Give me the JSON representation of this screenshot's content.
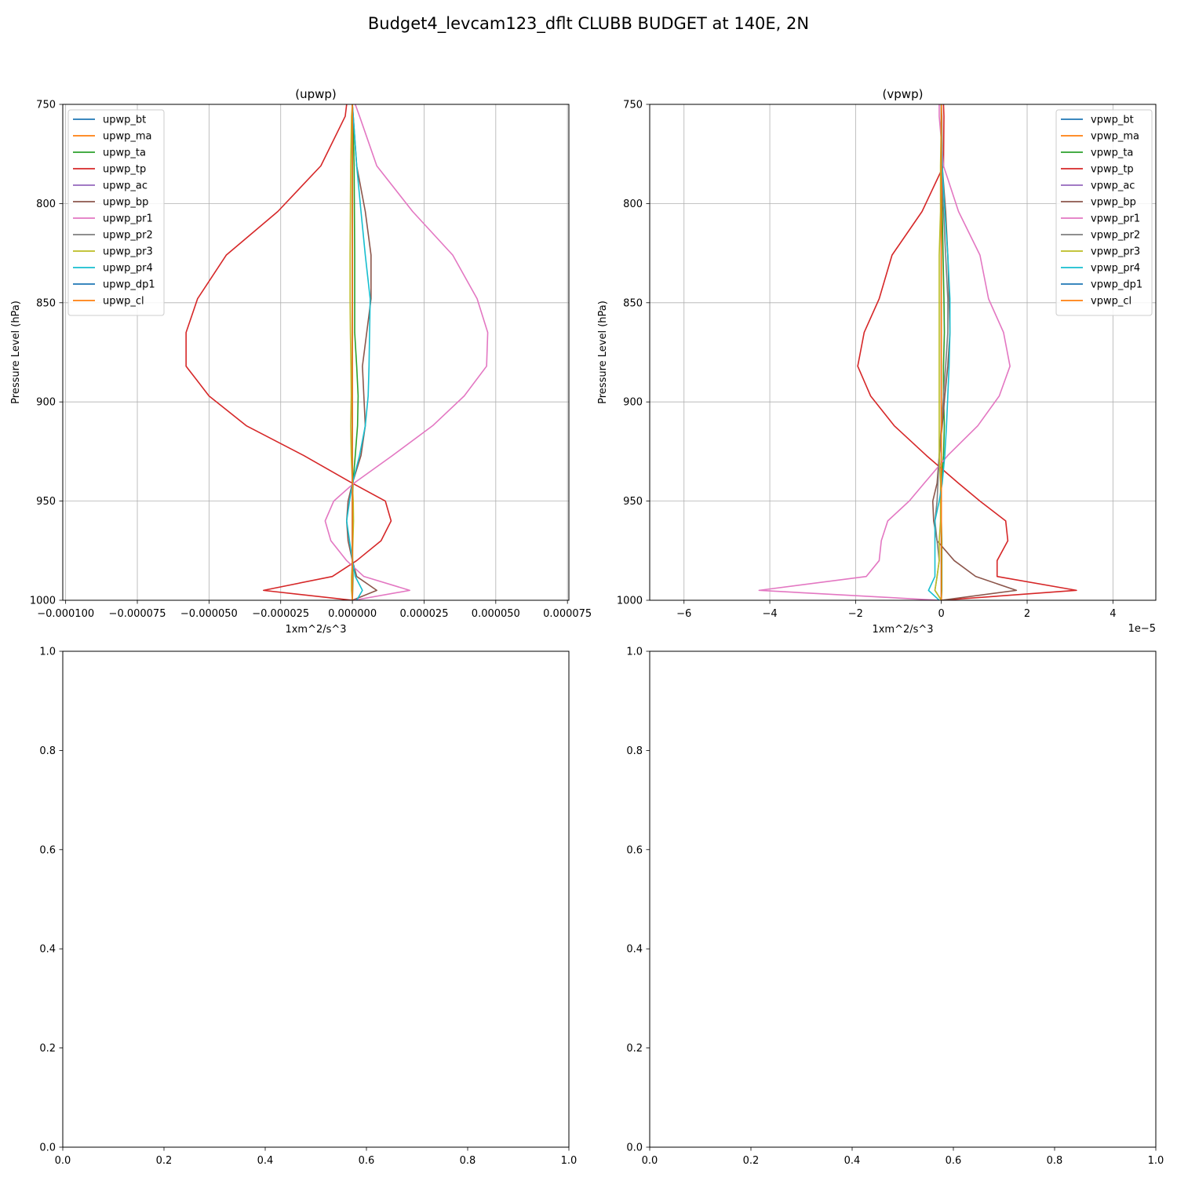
{
  "suptitle": "Budget4_levcam123_dflt CLUBB BUDGET at 140E, 2N",
  "chart_data": [
    {
      "type": "line",
      "title": "(upwp)",
      "xlabel": "1xm^2/s^3",
      "ylabel": "Pressure Level (hPa)",
      "xlim": [
        -0.000101,
        7.55e-05
      ],
      "ylim": [
        1000,
        750
      ],
      "xticks": [
        -0.0001,
        -7.5e-05,
        -5e-05,
        -2.5e-05,
        0,
        2.5e-05,
        5e-05,
        7.5e-05
      ],
      "xtick_labels": [
        "−0.000100",
        "−0.000075",
        "−0.000050",
        "−0.000025",
        "0.000000",
        "0.000025",
        "0.000050",
        "0.000075"
      ],
      "yticks": [
        750,
        800,
        850,
        900,
        950,
        1000
      ],
      "ytick_labels": [
        "750",
        "800",
        "850",
        "900",
        "950",
        "1000"
      ],
      "grid": true,
      "legend_position": "upper left",
      "levels": [
        750,
        756,
        781,
        804,
        826,
        848,
        865,
        882,
        897,
        912,
        927,
        941,
        950,
        960,
        970,
        980,
        988,
        995,
        1000
      ],
      "series": [
        {
          "name": "upwp_bt",
          "color": "#1f77b4",
          "values": [
            0,
            0,
            0,
            0,
            0,
            0,
            0,
            0,
            0,
            0,
            0,
            0,
            0,
            0,
            0,
            0,
            0,
            0,
            0
          ]
        },
        {
          "name": "upwp_ma",
          "color": "#ff7f0e",
          "values": [
            0,
            0,
            0,
            0,
            0,
            0,
            0,
            0,
            0,
            0,
            0,
            0,
            0,
            0,
            0,
            0,
            0,
            0,
            0
          ]
        },
        {
          "name": "upwp_ta",
          "color": "#2ca02c",
          "values": [
            0,
            2e-07,
            6e-07,
            7e-07,
            8e-07,
            8e-07,
            8e-07,
            1.5e-06,
            2e-06,
            1.8e-06,
            1e-06,
            2e-07,
            1e-07,
            0,
            0,
            1e-07,
            2e-07,
            1e-07,
            0
          ]
        },
        {
          "name": "upwp_tp",
          "color": "#d62728",
          "values": [
            -2e-06,
            -2.5e-06,
            -1.1e-05,
            -2.6e-05,
            -4.4e-05,
            -5.4e-05,
            -5.8e-05,
            -5.8e-05,
            -5e-05,
            -3.7e-05,
            -1.7e-05,
            0,
            1.15e-05,
            1.35e-05,
            1e-05,
            1.5e-06,
            -7e-06,
            -3.1e-05,
            0
          ]
        },
        {
          "name": "upwp_ac",
          "color": "#9467bd",
          "values": [
            0,
            0,
            0,
            0,
            0,
            0,
            0,
            0,
            0,
            0,
            0,
            0,
            0,
            0,
            0,
            0,
            0,
            0,
            0
          ]
        },
        {
          "name": "upwp_bp",
          "color": "#8c564b",
          "values": [
            0,
            3e-07,
            1.5e-06,
            4.5e-06,
            6.5e-06,
            6.5e-06,
            5e-06,
            3.5e-06,
            4e-06,
            4.5e-06,
            3e-06,
            0,
            -1.5e-06,
            -2e-06,
            -1.5e-06,
            0,
            1.5e-06,
            8.5e-06,
            0
          ]
        },
        {
          "name": "upwp_pr1",
          "color": "#e377c2",
          "values": [
            1e-06,
            2.5e-06,
            8.5e-06,
            2.1e-05,
            3.5e-05,
            4.35e-05,
            4.72e-05,
            4.68e-05,
            3.9e-05,
            2.8e-05,
            1.4e-05,
            5e-07,
            -6.5e-06,
            -9.5e-06,
            -7.5e-06,
            -2e-06,
            4e-06,
            2e-05,
            5e-07
          ]
        },
        {
          "name": "upwp_pr2",
          "color": "#7f7f7f",
          "values": [
            0,
            0,
            0,
            0,
            0,
            0,
            0,
            0,
            0,
            0,
            0,
            0,
            0,
            0,
            0,
            0,
            0,
            0,
            0
          ]
        },
        {
          "name": "upwp_pr3",
          "color": "#bcbd22",
          "values": [
            0,
            -3e-07,
            -6e-07,
            -7e-07,
            -8e-07,
            -8e-07,
            -7e-07,
            -5e-07,
            -4e-07,
            -6e-07,
            -4e-07,
            0,
            3e-07,
            4e-07,
            2e-07,
            0,
            -3e-07,
            -3e-07,
            0
          ]
        },
        {
          "name": "upwp_pr4",
          "color": "#17becf",
          "values": [
            0,
            3e-07,
            1.5e-06,
            3e-06,
            4.5e-06,
            6.2e-06,
            6e-06,
            5.8e-06,
            5.5e-06,
            4.5e-06,
            2.5e-06,
            0,
            -1e-06,
            -2e-06,
            -1e-06,
            0,
            1e-06,
            3.5e-06,
            1.5e-06
          ]
        },
        {
          "name": "upwp_dp1",
          "color": "#1f77b4",
          "values": [
            0,
            0,
            0,
            0,
            0,
            0,
            0,
            0,
            0,
            0,
            0,
            0,
            0,
            0,
            0,
            0,
            0,
            0,
            0
          ]
        },
        {
          "name": "upwp_cl",
          "color": "#ff7f0e",
          "values": [
            0,
            0,
            0,
            0,
            0,
            0,
            0,
            0,
            0,
            0,
            0,
            0,
            0,
            0,
            0,
            0,
            0,
            0,
            0
          ]
        }
      ]
    },
    {
      "type": "line",
      "title": "(vpwp)",
      "xlabel": "1xm^2/s^3",
      "ylabel": "Pressure Level (hPa)",
      "offset_label": "1e−5",
      "xlim": [
        -6.8,
        5.0
      ],
      "ylim": [
        1000,
        750
      ],
      "xticks": [
        -6,
        -4,
        -2,
        0,
        2,
        4
      ],
      "xtick_labels": [
        "−6",
        "−4",
        "−2",
        "0",
        "2",
        "4"
      ],
      "yticks": [
        750,
        800,
        850,
        900,
        950,
        1000
      ],
      "ytick_labels": [
        "750",
        "800",
        "850",
        "900",
        "950",
        "1000"
      ],
      "grid": true,
      "legend_position": "upper right",
      "levels": [
        750,
        756,
        781,
        804,
        826,
        848,
        865,
        882,
        897,
        912,
        927,
        941,
        950,
        960,
        970,
        980,
        988,
        995,
        1000
      ],
      "series": [
        {
          "name": "vpwp_bt",
          "color": "#1f77b4",
          "values": [
            0,
            0,
            0,
            0,
            0,
            0,
            0,
            0,
            0,
            0,
            0,
            0,
            0,
            0,
            0,
            0,
            0,
            0,
            0
          ]
        },
        {
          "name": "vpwp_ma",
          "color": "#ff7f0e",
          "values": [
            0,
            0,
            0,
            0,
            0,
            0,
            0,
            0,
            0,
            0,
            0,
            0,
            0,
            0,
            0,
            0,
            0,
            0,
            0
          ]
        },
        {
          "name": "vpwp_ta",
          "color": "#2ca02c",
          "values": [
            0,
            0,
            0,
            0.02,
            0.04,
            0.06,
            0.07,
            0.05,
            0.05,
            0.07,
            0.05,
            0,
            0,
            0,
            0.01,
            0.01,
            0.01,
            0.01,
            0
          ]
        },
        {
          "name": "vpwp_tp",
          "color": "#d62728",
          "values": [
            0.05,
            0.06,
            0.05,
            -0.45,
            -1.15,
            -1.45,
            -1.8,
            -1.95,
            -1.65,
            -1.1,
            -0.35,
            0.4,
            0.9,
            1.5,
            1.55,
            1.3,
            1.3,
            3.15,
            0
          ]
        },
        {
          "name": "vpwp_ac",
          "color": "#9467bd",
          "values": [
            0,
            0,
            0,
            0,
            0,
            0,
            0,
            0,
            0,
            0,
            0,
            0,
            0,
            0,
            0,
            0,
            0,
            0,
            0
          ]
        },
        {
          "name": "vpwp_bp",
          "color": "#8c564b",
          "values": [
            0,
            0.01,
            0.02,
            0.1,
            0.15,
            0.18,
            0.2,
            0.15,
            0.08,
            0.02,
            -0.05,
            -0.1,
            -0.2,
            -0.18,
            -0.1,
            0.3,
            0.8,
            1.75,
            0
          ]
        },
        {
          "name": "vpwp_pr1",
          "color": "#e377c2",
          "values": [
            -0.05,
            -0.05,
            0.05,
            0.4,
            0.9,
            1.1,
            1.45,
            1.6,
            1.35,
            0.85,
            0.15,
            -0.4,
            -0.75,
            -1.25,
            -1.4,
            -1.45,
            -1.75,
            -4.25,
            -0.05
          ]
        },
        {
          "name": "vpwp_pr2",
          "color": "#7f7f7f",
          "values": [
            0,
            0,
            0,
            0.05,
            0.1,
            0.15,
            0.15,
            0.1,
            0.05,
            0,
            -0.05,
            -0.08,
            -0.1,
            -0.15,
            -0.1,
            -0.05,
            -0.1,
            -0.15,
            0
          ]
        },
        {
          "name": "vpwp_pr3",
          "color": "#bcbd22",
          "values": [
            0,
            0,
            -0.02,
            -0.02,
            -0.05,
            -0.05,
            -0.05,
            -0.05,
            -0.05,
            -0.05,
            -0.05,
            -0.02,
            -0.02,
            -0.02,
            -0.05,
            -0.05,
            -0.1,
            -0.15,
            0
          ]
        },
        {
          "name": "vpwp_pr4",
          "color": "#17becf",
          "values": [
            0,
            0,
            0.02,
            0.08,
            0.15,
            0.2,
            0.2,
            0.18,
            0.15,
            0.12,
            0.08,
            0.02,
            -0.05,
            -0.15,
            -0.15,
            -0.15,
            -0.15,
            -0.3,
            -0.05
          ]
        },
        {
          "name": "vpwp_dp1",
          "color": "#1f77b4",
          "values": [
            0,
            0,
            0,
            0,
            0,
            0,
            0,
            0,
            0,
            0,
            0,
            0,
            0,
            0,
            0,
            0,
            0,
            0,
            0
          ]
        },
        {
          "name": "vpwp_cl",
          "color": "#ff7f0e",
          "values": [
            0,
            0,
            0,
            0,
            0,
            0,
            0,
            0,
            0,
            0,
            0,
            0,
            0,
            0,
            0,
            0,
            0,
            0,
            0
          ]
        }
      ]
    },
    {
      "type": "line",
      "title": "",
      "xlim": [
        0,
        1
      ],
      "ylim": [
        0,
        1
      ],
      "xticks": [
        0,
        0.2,
        0.4,
        0.6,
        0.8,
        1.0
      ],
      "xtick_labels": [
        "0.0",
        "0.2",
        "0.4",
        "0.6",
        "0.8",
        "1.0"
      ],
      "yticks": [
        0,
        0.2,
        0.4,
        0.6,
        0.8,
        1.0
      ],
      "ytick_labels": [
        "0.0",
        "0.2",
        "0.4",
        "0.6",
        "0.8",
        "1.0"
      ],
      "grid": false,
      "series": []
    },
    {
      "type": "line",
      "title": "",
      "xlim": [
        0,
        1
      ],
      "ylim": [
        0,
        1
      ],
      "xticks": [
        0,
        0.2,
        0.4,
        0.6,
        0.8,
        1.0
      ],
      "xtick_labels": [
        "0.0",
        "0.2",
        "0.4",
        "0.6",
        "0.8",
        "1.0"
      ],
      "yticks": [
        0,
        0.2,
        0.4,
        0.6,
        0.8,
        1.0
      ],
      "ytick_labels": [
        "0.0",
        "0.2",
        "0.4",
        "0.6",
        "0.8",
        "1.0"
      ],
      "grid": false,
      "series": []
    }
  ]
}
